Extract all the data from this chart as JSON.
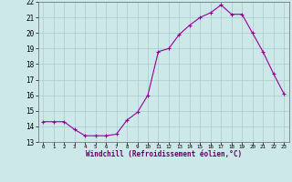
{
  "x": [
    0,
    1,
    2,
    3,
    4,
    5,
    6,
    7,
    8,
    9,
    10,
    11,
    12,
    13,
    14,
    15,
    16,
    17,
    18,
    19,
    20,
    21,
    22,
    23
  ],
  "y": [
    14.3,
    14.3,
    14.3,
    13.8,
    13.4,
    13.4,
    13.4,
    13.5,
    14.4,
    14.9,
    16.0,
    18.8,
    19.0,
    19.9,
    20.5,
    21.0,
    21.3,
    21.8,
    21.2,
    21.2,
    20.0,
    18.8,
    17.4,
    16.1
  ],
  "xlim": [
    -0.5,
    23.5
  ],
  "ylim": [
    13,
    22
  ],
  "yticks": [
    13,
    14,
    15,
    16,
    17,
    18,
    19,
    20,
    21,
    22
  ],
  "xtick_labels": [
    "0",
    "1",
    "2",
    "3",
    "4",
    "5",
    "6",
    "7",
    "8",
    "9",
    "10",
    "11",
    "12",
    "13",
    "14",
    "15",
    "16",
    "17",
    "18",
    "19",
    "20",
    "21",
    "22",
    "23"
  ],
  "xlabel": "Windchill (Refroidissement éolien,°C)",
  "line_color": "#990099",
  "marker_color": "#990099",
  "bg_color": "#cce8e8",
  "grid_color": "#aacccc",
  "figsize": [
    3.2,
    2.0
  ],
  "dpi": 100
}
